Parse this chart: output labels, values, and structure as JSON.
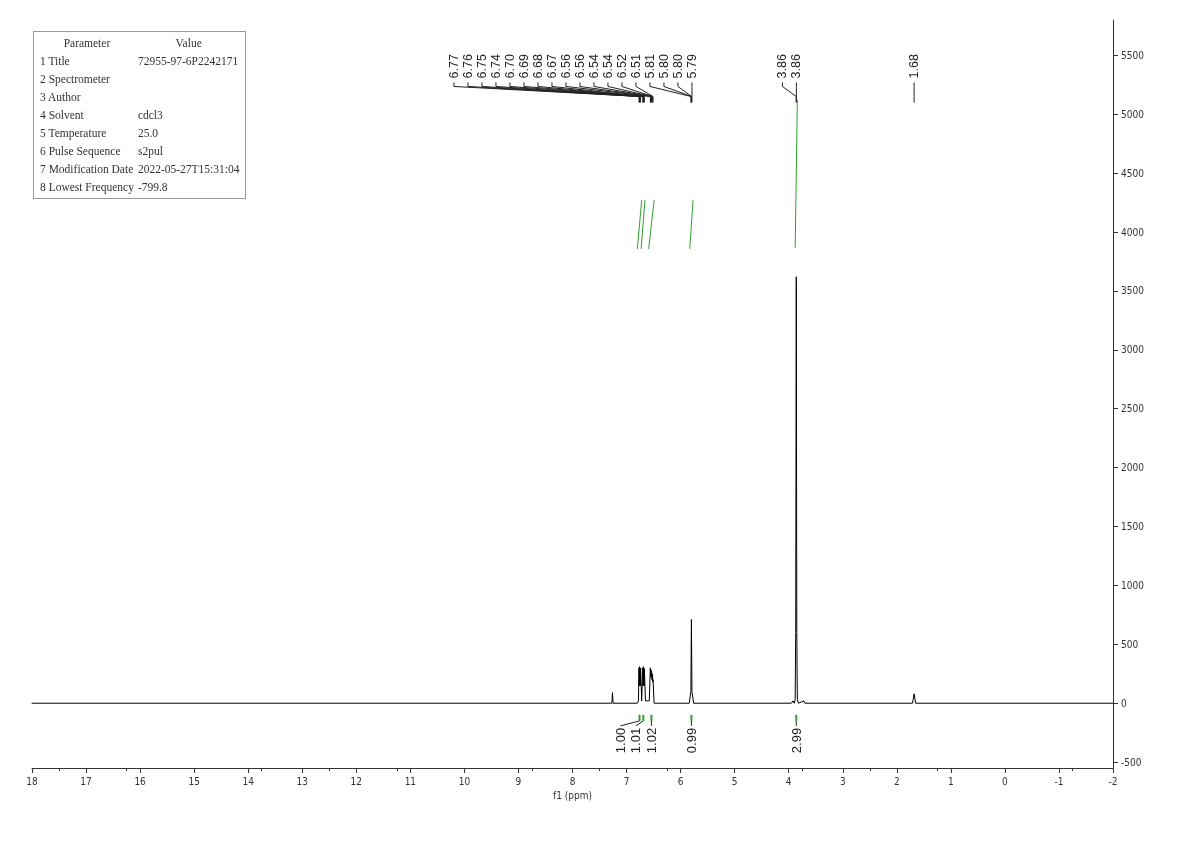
{
  "chart_data": {
    "type": "line",
    "xlabel": "f1 (ppm)",
    "xlim": [
      18,
      -2
    ],
    "xticks": [
      18,
      17,
      16,
      15,
      14,
      13,
      12,
      11,
      10,
      9,
      8,
      7,
      6,
      5,
      4,
      3,
      2,
      1,
      0,
      -1,
      -2
    ],
    "ylim": [
      -550,
      5800
    ],
    "yticks": [
      -500,
      0,
      500,
      1000,
      1500,
      2000,
      2500,
      3000,
      3500,
      4000,
      4500,
      5000,
      5500
    ],
    "grid": false,
    "marker": "none",
    "line_style": "solid",
    "series": [
      {
        "color": "#000000",
        "x": [
          18,
          7.3,
          7.27,
          7.26,
          7.25,
          6.8,
          6.78,
          6.77,
          6.765,
          6.76,
          6.755,
          6.75,
          6.745,
          6.74,
          6.72,
          6.7,
          6.695,
          6.69,
          6.685,
          6.68,
          6.675,
          6.67,
          6.65,
          6.58,
          6.56,
          6.55,
          6.54,
          6.53,
          6.52,
          6.515,
          6.51,
          6.49,
          5.84,
          5.81,
          5.8,
          5.79,
          5.76,
          3.95,
          3.92,
          3.9,
          3.88,
          3.87,
          3.86,
          3.85,
          3.84,
          3.82,
          3.72,
          3.7,
          1.71,
          1.68,
          1.65,
          -2
        ],
        "values": [
          0,
          0,
          0,
          90,
          0,
          0,
          20,
          300,
          150,
          310,
          150,
          290,
          150,
          300,
          20,
          300,
          150,
          310,
          150,
          300,
          150,
          290,
          20,
          20,
          300,
          220,
          280,
          200,
          250,
          180,
          200,
          0,
          0,
          100,
          710,
          100,
          0,
          0,
          20,
          0,
          30,
          600,
          3620,
          600,
          30,
          0,
          20,
          0,
          0,
          80,
          0,
          0
        ]
      },
      {
        "color": "#2ca02c",
        "x": [
          6.8,
          6.72
        ],
        "values": [
          3860,
          4270
        ]
      },
      {
        "color": "#2ca02c",
        "x": [
          6.73,
          6.66
        ],
        "values": [
          3860,
          4270
        ]
      },
      {
        "color": "#2ca02c",
        "x": [
          6.59,
          6.49
        ],
        "values": [
          3860,
          4270
        ]
      },
      {
        "color": "#2ca02c",
        "x": [
          5.83,
          5.77
        ],
        "values": [
          3860,
          4270
        ]
      },
      {
        "color": "#2ca02c",
        "x": [
          3.88,
          3.84
        ],
        "values": [
          3870,
          5120
        ]
      }
    ],
    "annotations": [
      "Parameter\tValue",
      "1 Title\t72955-97-6P2242171",
      "2 Spectrometer\t",
      "3 Author\t",
      "4 Solvent\tcdcl3",
      "5 Temperature\t25.0",
      "6 Pulse Sequence\ts2pul",
      "7 Modification Date\t2022-05-27T15:31:04",
      "8 Lowest Frequency\t-799.8",
      {
        "text": "6.77",
        "x": 6.77
      },
      {
        "text": "6.76",
        "x": 6.76
      },
      {
        "text": "6.75",
        "x": 6.75
      },
      {
        "text": "6.74",
        "x": 6.74
      },
      {
        "text": "6.70",
        "x": 6.7
      },
      {
        "text": "6.69",
        "x": 6.69
      },
      {
        "text": "6.68",
        "x": 6.68
      },
      {
        "text": "6.67",
        "x": 6.67
      },
      {
        "text": "6.56",
        "x": 6.56
      },
      {
        "text": "6.56",
        "x": 6.555
      },
      {
        "text": "6.54",
        "x": 6.54
      },
      {
        "text": "6.54",
        "x": 6.535
      },
      {
        "text": "6.52",
        "x": 6.52
      },
      {
        "text": "6.51",
        "x": 6.51
      },
      {
        "text": "5.81",
        "x": 5.81
      },
      {
        "text": "5.80",
        "x": 5.8
      },
      {
        "text": "5.80",
        "x": 5.797
      },
      {
        "text": "5.79",
        "x": 5.79
      },
      {
        "text": "3.86",
        "x": 3.862
      },
      {
        "text": "3.86",
        "x": 3.858
      },
      {
        "text": "1.68",
        "x": 1.68
      },
      {
        "text": "1.00",
        "x": 6.76
      },
      {
        "text": "1.01",
        "x": 6.69
      },
      {
        "text": "1.02",
        "x": 6.54
      },
      {
        "text": "0.99",
        "x": 5.8
      },
      {
        "text": "2.99",
        "x": 3.86
      }
    ]
  }
}
